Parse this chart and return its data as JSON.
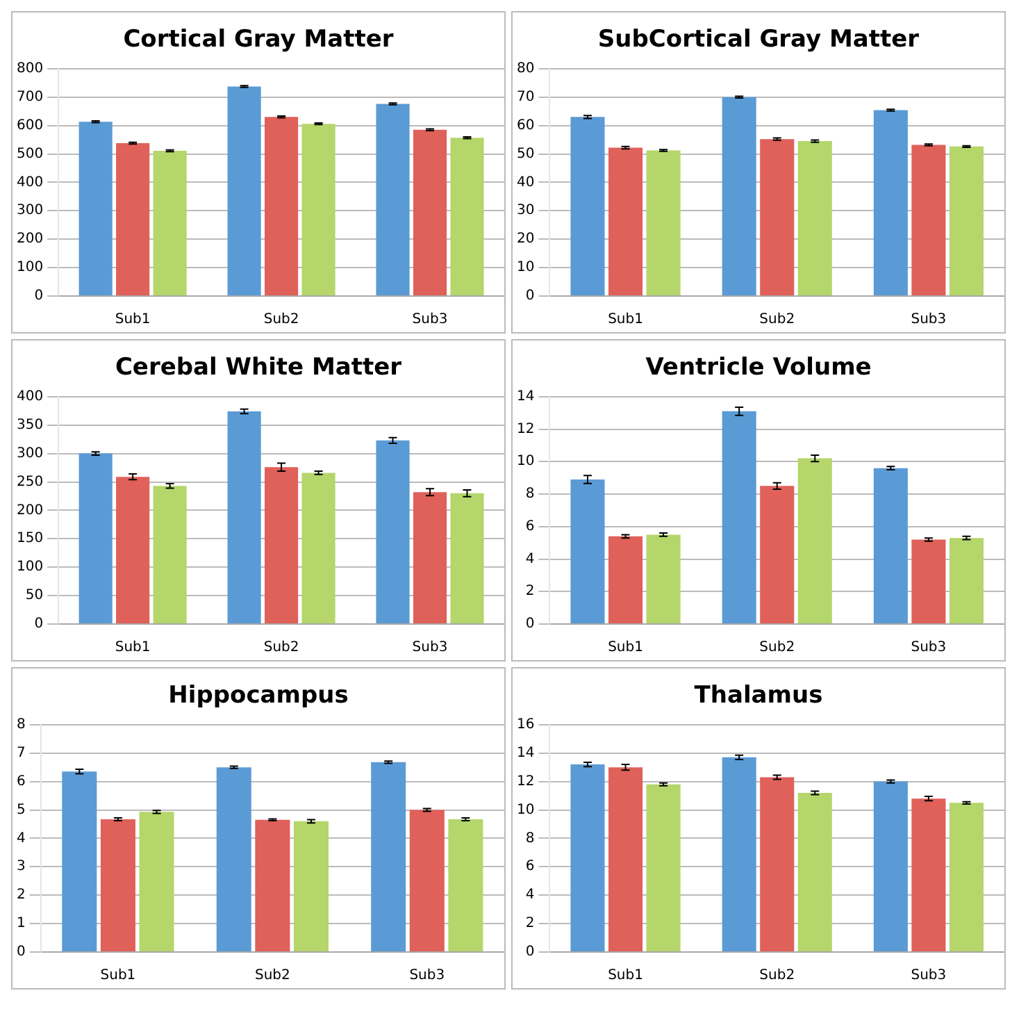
{
  "chart_data": [
    {
      "type": "bar",
      "title": "Cortical Gray Matter",
      "categories": [
        "Sub1",
        "Sub2",
        "Sub3"
      ],
      "ylim": [
        0,
        800
      ],
      "yticks": [
        0,
        100,
        200,
        300,
        400,
        500,
        600,
        700,
        800
      ],
      "grid": "y",
      "series": [
        {
          "color": "#5b9bd5",
          "values": [
            613,
            737,
            676
          ],
          "errors": [
            3,
            3,
            3
          ]
        },
        {
          "color": "#e0605a",
          "values": [
            538,
            630,
            585
          ],
          "errors": [
            3,
            3,
            3
          ]
        },
        {
          "color": "#b4d66a",
          "values": [
            511,
            606,
            557
          ],
          "errors": [
            3,
            3,
            3
          ]
        }
      ]
    },
    {
      "type": "bar",
      "title": "SubCortical Gray Matter",
      "categories": [
        "Sub1",
        "Sub2",
        "Sub3"
      ],
      "ylim": [
        0,
        80
      ],
      "yticks": [
        0,
        10,
        20,
        30,
        40,
        50,
        60,
        70,
        80
      ],
      "grid": "y",
      "series": [
        {
          "color": "#5b9bd5",
          "values": [
            63,
            70,
            65.4
          ],
          "errors": [
            0.5,
            0.3,
            0.3
          ]
        },
        {
          "color": "#e0605a",
          "values": [
            52.2,
            55.2,
            53.2
          ],
          "errors": [
            0.4,
            0.4,
            0.3
          ]
        },
        {
          "color": "#b4d66a",
          "values": [
            51.2,
            54.5,
            52.6
          ],
          "errors": [
            0.3,
            0.4,
            0.3
          ]
        }
      ]
    },
    {
      "type": "bar",
      "title": "Cerebal White Matter",
      "categories": [
        "Sub1",
        "Sub2",
        "Sub3"
      ],
      "ylim": [
        0,
        400
      ],
      "yticks": [
        0,
        50,
        100,
        150,
        200,
        250,
        300,
        350,
        400
      ],
      "grid": "y",
      "series": [
        {
          "color": "#5b9bd5",
          "values": [
            300,
            374,
            323
          ],
          "errors": [
            3,
            4,
            5
          ]
        },
        {
          "color": "#e0605a",
          "values": [
            259,
            276,
            232
          ],
          "errors": [
            5,
            7,
            6
          ]
        },
        {
          "color": "#b4d66a",
          "values": [
            243,
            266,
            230
          ],
          "errors": [
            4,
            3,
            6
          ]
        }
      ]
    },
    {
      "type": "bar",
      "title": "Ventricle Volume",
      "categories": [
        "Sub1",
        "Sub2",
        "Sub3"
      ],
      "ylim": [
        0,
        14
      ],
      "yticks": [
        0,
        2,
        4,
        6,
        8,
        10,
        12,
        14
      ],
      "grid": "y",
      "series": [
        {
          "color": "#5b9bd5",
          "values": [
            8.9,
            13.1,
            9.6
          ],
          "errors": [
            0.25,
            0.25,
            0.1
          ]
        },
        {
          "color": "#e0605a",
          "values": [
            5.4,
            8.5,
            5.2
          ],
          "errors": [
            0.1,
            0.2,
            0.1
          ]
        },
        {
          "color": "#b4d66a",
          "values": [
            5.5,
            10.2,
            5.3
          ],
          "errors": [
            0.1,
            0.2,
            0.1
          ]
        }
      ]
    },
    {
      "type": "bar",
      "title": "Hippocampus",
      "categories": [
        "Sub1",
        "Sub2",
        "Sub3"
      ],
      "ylim": [
        0,
        8
      ],
      "yticks": [
        0,
        1,
        2,
        3,
        4,
        5,
        6,
        7,
        8
      ],
      "grid": "y",
      "series": [
        {
          "color": "#5b9bd5",
          "values": [
            6.35,
            6.5,
            6.68
          ],
          "errors": [
            0.08,
            0.04,
            0.04
          ]
        },
        {
          "color": "#e0605a",
          "values": [
            4.67,
            4.65,
            5.0
          ],
          "errors": [
            0.05,
            0.03,
            0.05
          ]
        },
        {
          "color": "#b4d66a",
          "values": [
            4.93,
            4.6,
            4.67
          ],
          "errors": [
            0.05,
            0.06,
            0.05
          ]
        }
      ]
    },
    {
      "type": "bar",
      "title": "Thalamus",
      "categories": [
        "Sub1",
        "Sub2",
        "Sub3"
      ],
      "ylim": [
        0,
        16
      ],
      "yticks": [
        0,
        2,
        4,
        6,
        8,
        10,
        12,
        14,
        16
      ],
      "grid": "y",
      "series": [
        {
          "color": "#5b9bd5",
          "values": [
            13.2,
            13.7,
            12.0
          ],
          "errors": [
            0.15,
            0.15,
            0.1
          ]
        },
        {
          "color": "#e0605a",
          "values": [
            13.0,
            12.3,
            10.8
          ],
          "errors": [
            0.2,
            0.15,
            0.15
          ]
        },
        {
          "color": "#b4d66a",
          "values": [
            11.8,
            11.2,
            10.5
          ],
          "errors": [
            0.1,
            0.12,
            0.08
          ]
        }
      ]
    }
  ]
}
